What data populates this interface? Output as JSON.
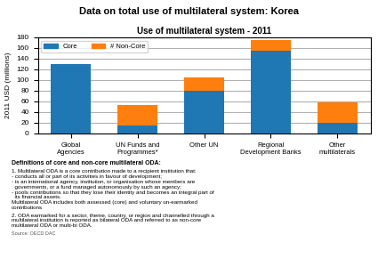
{
  "chart_data": {
    "type": "bar",
    "stacked": true,
    "title": "Data on total use of multilateral system: Korea",
    "subtitle": "Use of multilateral system - 2011",
    "y_label": "2011 USD (millions)",
    "categories": [
      "Global\nAgencies",
      "UN Funds and\nProgrammes*",
      "Other UN",
      "Regional\nDevelopment Banks",
      "Other\nmultilaterals"
    ],
    "series": [
      {
        "name": "Core",
        "values": [
          130,
          15,
          80,
          155,
          20
        ]
      },
      {
        "name": "# Non-Core",
        "values": [
          0,
          38,
          25,
          20,
          38
        ]
      }
    ],
    "ylim": [
      0,
      180
    ],
    "yticks": [
      0,
      20,
      40,
      60,
      80,
      100,
      120,
      140,
      160,
      180
    ],
    "grid": true,
    "legend": "upper left",
    "annotations": [
      "Definitions of core and non-core multilateral ODA:",
      "1. Multilateral ODA is a core contribution made to a recipient institution that:\n- conducts all or part of its activities in favour of development;\n- is an international agency, institution, or organisation whose members are\n  governments, or a fund managed autonomously by such an agency;\n- pools contributions so that they lose their identity and becomes an integral part of\n  its financial assets.\nMultilateral ODA includes both assessed (core) and voluntary un-earmarked\ncontributions",
      "2. ODA earmarked for a sector, theme, country, or region and channelled through a\nmultilateral institution is reported as bilateral ODA and referred to as non-core\nmultilateral ODA or multi-bi ODA.",
      "Source: OECD DAC"
    ]
  }
}
